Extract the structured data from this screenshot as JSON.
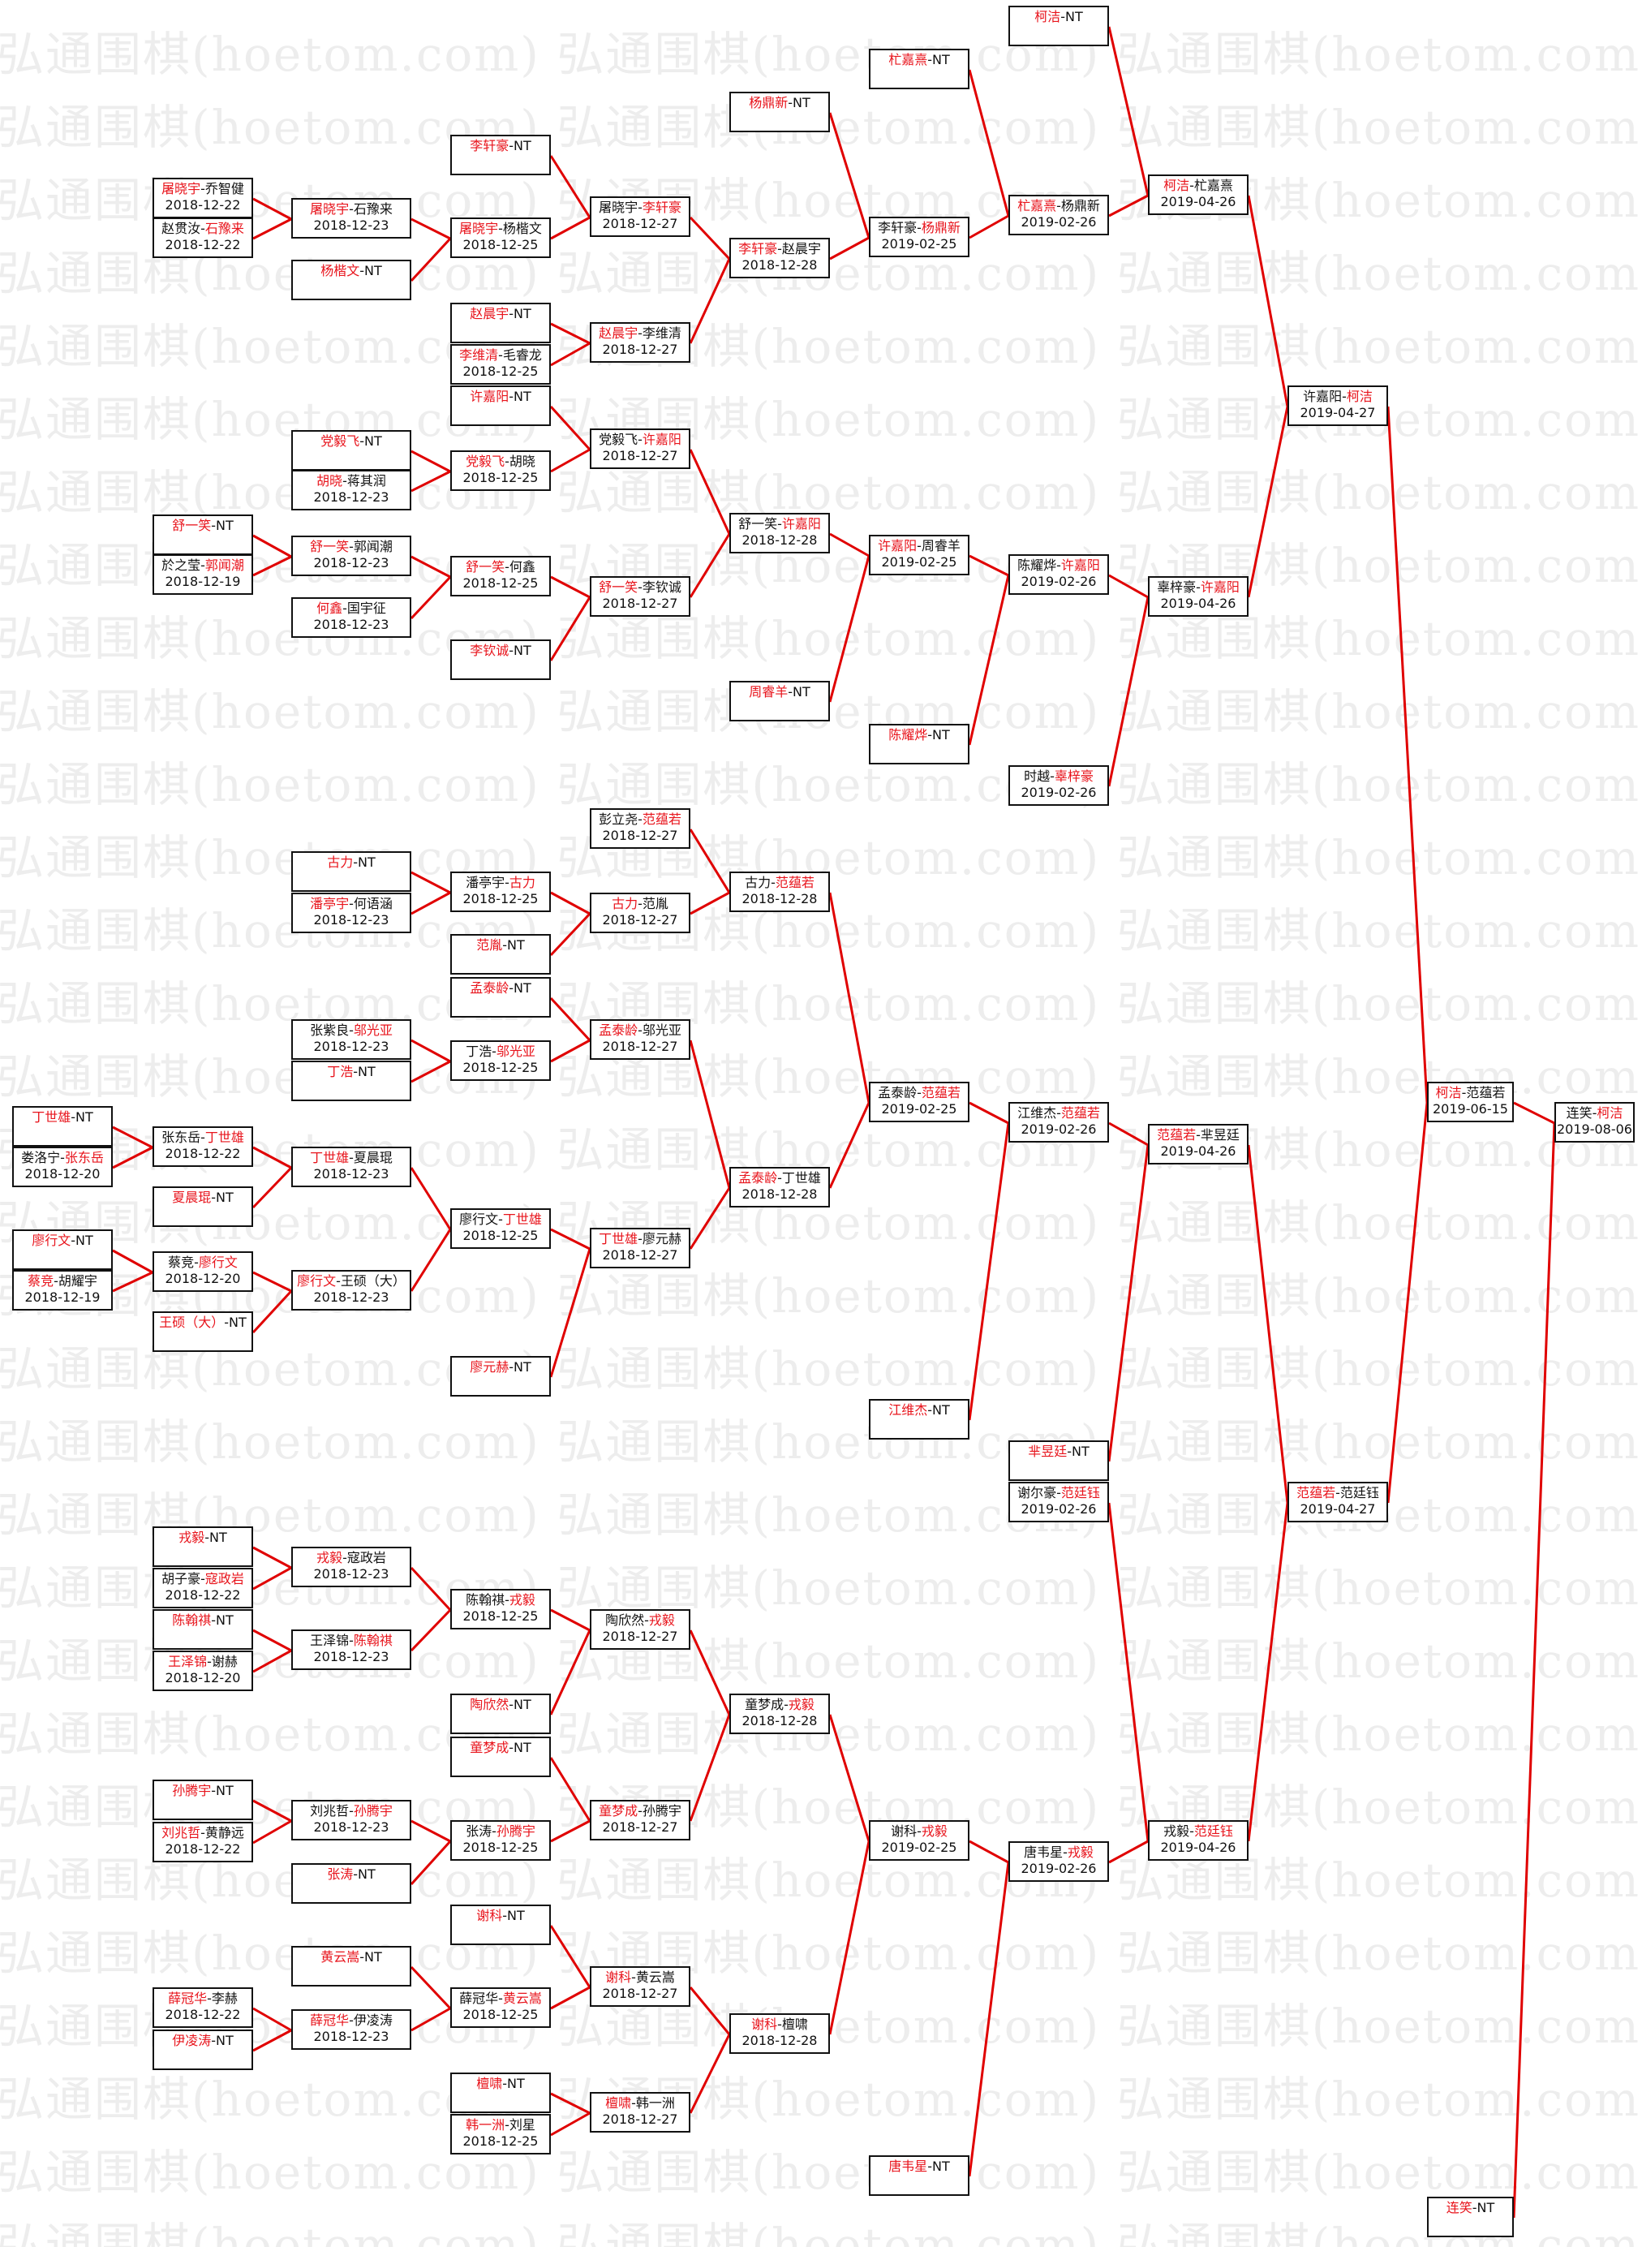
{
  "watermark": "弘通围棋(hoetom.com)",
  "separator": "-",
  "colors": {
    "line": "#e00000",
    "winner": "#e8141c",
    "text": "#111111",
    "border": "#111111"
  },
  "matches": [
    {
      "p1": "丁世雄",
      "p2": "NT",
      "winner": 1
    },
    {
      "p1": "娄洛宁",
      "p2": "张东岳",
      "date": "2018-12-20",
      "winner": 2
    },
    {
      "p1": "廖行文",
      "p2": "NT",
      "winner": 1
    },
    {
      "p1": "蔡竞",
      "p2": "胡耀宇",
      "date": "2018-12-19",
      "winner": 1
    },
    {
      "p1": "屠晓宇",
      "p2": "乔智健",
      "date": "2018-12-22",
      "winner": 1
    },
    {
      "p1": "赵贯汝",
      "p2": "石豫来",
      "date": "2018-12-22",
      "winner": 2
    },
    {
      "p1": "舒一笑",
      "p2": "NT",
      "winner": 1
    },
    {
      "p1": "於之莹",
      "p2": "郭闻潮",
      "date": "2018-12-19",
      "winner": 2
    },
    {
      "p1": "张东岳",
      "p2": "丁世雄",
      "date": "2018-12-22",
      "winner": 2
    },
    {
      "p1": "夏晨琨",
      "p2": "NT",
      "winner": 1
    },
    {
      "p1": "蔡竞",
      "p2": "廖行文",
      "date": "2018-12-20",
      "winner": 2
    },
    {
      "p1": "王硕（大）",
      "p2": "NT",
      "winner": 1
    },
    {
      "p1": "戎毅",
      "p2": "NT",
      "winner": 1
    },
    {
      "p1": "胡子豪",
      "p2": "寇政岩",
      "date": "2018-12-22",
      "winner": 2
    },
    {
      "p1": "陈翰祺",
      "p2": "NT",
      "winner": 1
    },
    {
      "p1": "王泽锦",
      "p2": "谢赫",
      "date": "2018-12-20",
      "winner": 1
    },
    {
      "p1": "孙腾宇",
      "p2": "NT",
      "winner": 1
    },
    {
      "p1": "刘兆哲",
      "p2": "黄静远",
      "date": "2018-12-22",
      "winner": 1
    },
    {
      "p1": "薛冠华",
      "p2": "李赫",
      "date": "2018-12-22",
      "winner": 1
    },
    {
      "p1": "伊凌涛",
      "p2": "NT",
      "winner": 1
    },
    {
      "p1": "屠晓宇",
      "p2": "石豫来",
      "date": "2018-12-23",
      "winner": 1
    },
    {
      "p1": "杨楷文",
      "p2": "NT",
      "winner": 1
    },
    {
      "p1": "党毅飞",
      "p2": "NT",
      "winner": 1
    },
    {
      "p1": "胡晓",
      "p2": "蒋其润",
      "date": "2018-12-23",
      "winner": 1
    },
    {
      "p1": "舒一笑",
      "p2": "郭闻潮",
      "date": "2018-12-23",
      "winner": 1
    },
    {
      "p1": "何鑫",
      "p2": "国宇征",
      "date": "2018-12-23",
      "winner": 1
    },
    {
      "p1": "古力",
      "p2": "NT",
      "winner": 1
    },
    {
      "p1": "潘亭宇",
      "p2": "何语涵",
      "date": "2018-12-23",
      "winner": 1
    },
    {
      "p1": "张紫良",
      "p2": "邬光亚",
      "date": "2018-12-23",
      "winner": 2
    },
    {
      "p1": "丁浩",
      "p2": "NT",
      "winner": 1
    },
    {
      "p1": "丁世雄",
      "p2": "夏晨琨",
      "date": "2018-12-23",
      "winner": 1
    },
    {
      "p1": "廖行文",
      "p2": "王硕（大）",
      "date": "2018-12-23",
      "winner": 1
    },
    {
      "p1": "戎毅",
      "p2": "寇政岩",
      "date": "2018-12-23",
      "winner": 1
    },
    {
      "p1": "王泽锦",
      "p2": "陈翰祺",
      "date": "2018-12-23",
      "winner": 2
    },
    {
      "p1": "刘兆哲",
      "p2": "孙腾宇",
      "date": "2018-12-23",
      "winner": 2
    },
    {
      "p1": "张涛",
      "p2": "NT",
      "winner": 1
    },
    {
      "p1": "黄云嵩",
      "p2": "NT",
      "winner": 1
    },
    {
      "p1": "薛冠华",
      "p2": "伊凌涛",
      "date": "2018-12-23",
      "winner": 1
    },
    {
      "p1": "李轩豪",
      "p2": "NT",
      "winner": 1
    },
    {
      "p1": "屠晓宇",
      "p2": "杨楷文",
      "date": "2018-12-25",
      "winner": 1
    },
    {
      "p1": "赵晨宇",
      "p2": "NT",
      "winner": 1
    },
    {
      "p1": "李维清",
      "p2": "毛睿龙",
      "date": "2018-12-25",
      "winner": 1
    },
    {
      "p1": "许嘉阳",
      "p2": "NT",
      "winner": 1
    },
    {
      "p1": "党毅飞",
      "p2": "胡晓",
      "date": "2018-12-25",
      "winner": 1
    },
    {
      "p1": "舒一笑",
      "p2": "何鑫",
      "date": "2018-12-25",
      "winner": 1
    },
    {
      "p1": "李钦诚",
      "p2": "NT",
      "winner": 1
    },
    {
      "p1": "潘亭宇",
      "p2": "古力",
      "date": "2018-12-25",
      "winner": 2
    },
    {
      "p1": "范胤",
      "p2": "NT",
      "winner": 1
    },
    {
      "p1": "孟泰龄",
      "p2": "NT",
      "winner": 1
    },
    {
      "p1": "丁浩",
      "p2": "邬光亚",
      "date": "2018-12-25",
      "winner": 2
    },
    {
      "p1": "廖行文",
      "p2": "丁世雄",
      "date": "2018-12-25",
      "winner": 2
    },
    {
      "p1": "廖元赫",
      "p2": "NT",
      "winner": 1
    },
    {
      "p1": "陈翰祺",
      "p2": "戎毅",
      "date": "2018-12-25",
      "winner": 2
    },
    {
      "p1": "陶欣然",
      "p2": "NT",
      "winner": 1
    },
    {
      "p1": "童梦成",
      "p2": "NT",
      "winner": 1
    },
    {
      "p1": "张涛",
      "p2": "孙腾宇",
      "date": "2018-12-25",
      "winner": 2
    },
    {
      "p1": "谢科",
      "p2": "NT",
      "winner": 1
    },
    {
      "p1": "薛冠华",
      "p2": "黄云嵩",
      "date": "2018-12-25",
      "winner": 2
    },
    {
      "p1": "檀啸",
      "p2": "NT",
      "winner": 1
    },
    {
      "p1": "韩一洲",
      "p2": "刘星",
      "date": "2018-12-25",
      "winner": 1
    },
    {
      "p1": "屠晓宇",
      "p2": "李轩豪",
      "date": "2018-12-27",
      "winner": 2
    },
    {
      "p1": "赵晨宇",
      "p2": "李维清",
      "date": "2018-12-27",
      "winner": 1
    },
    {
      "p1": "党毅飞",
      "p2": "许嘉阳",
      "date": "2018-12-27",
      "winner": 2
    },
    {
      "p1": "舒一笑",
      "p2": "李钦诚",
      "date": "2018-12-27",
      "winner": 1
    },
    {
      "p1": "彭立尧",
      "p2": "范蕴若",
      "date": "2018-12-27",
      "winner": 2
    },
    {
      "p1": "古力",
      "p2": "范胤",
      "date": "2018-12-27",
      "winner": 1
    },
    {
      "p1": "孟泰龄",
      "p2": "邬光亚",
      "date": "2018-12-27",
      "winner": 1
    },
    {
      "p1": "丁世雄",
      "p2": "廖元赫",
      "date": "2018-12-27",
      "winner": 1
    },
    {
      "p1": "陶欣然",
      "p2": "戎毅",
      "date": "2018-12-27",
      "winner": 2
    },
    {
      "p1": "童梦成",
      "p2": "孙腾宇",
      "date": "2018-12-27",
      "winner": 1
    },
    {
      "p1": "谢科",
      "p2": "黄云嵩",
      "date": "2018-12-27",
      "winner": 1
    },
    {
      "p1": "檀啸",
      "p2": "韩一洲",
      "date": "2018-12-27",
      "winner": 1
    },
    {
      "p1": "杨鼎新",
      "p2": "NT",
      "winner": 1
    },
    {
      "p1": "李轩豪",
      "p2": "赵晨宇",
      "date": "2018-12-28",
      "winner": 1
    },
    {
      "p1": "舒一笑",
      "p2": "许嘉阳",
      "date": "2018-12-28",
      "winner": 2
    },
    {
      "p1": "周睿羊",
      "p2": "NT",
      "winner": 1
    },
    {
      "p1": "古力",
      "p2": "范蕴若",
      "date": "2018-12-28",
      "winner": 2
    },
    {
      "p1": "孟泰龄",
      "p2": "丁世雄",
      "date": "2018-12-28",
      "winner": 1
    },
    {
      "p1": "童梦成",
      "p2": "戎毅",
      "date": "2018-12-28",
      "winner": 2
    },
    {
      "p1": "谢科",
      "p2": "檀啸",
      "date": "2018-12-28",
      "winner": 1
    },
    {
      "p1": "杧嘉熹",
      "p2": "NT",
      "winner": 1
    },
    {
      "p1": "李轩豪",
      "p2": "杨鼎新",
      "date": "2019-02-25",
      "winner": 2
    },
    {
      "p1": "许嘉阳",
      "p2": "周睿羊",
      "date": "2019-02-25",
      "winner": 1
    },
    {
      "p1": "陈耀烨",
      "p2": "NT",
      "winner": 1
    },
    {
      "p1": "孟泰龄",
      "p2": "范蕴若",
      "date": "2019-02-25",
      "winner": 2
    },
    {
      "p1": "江维杰",
      "p2": "NT",
      "winner": 1
    },
    {
      "p1": "谢科",
      "p2": "戎毅",
      "date": "2019-02-25",
      "winner": 2
    },
    {
      "p1": "唐韦星",
      "p2": "NT",
      "winner": 1
    },
    {
      "p1": "柯洁",
      "p2": "NT",
      "winner": 1
    },
    {
      "p1": "杧嘉熹",
      "p2": "杨鼎新",
      "date": "2019-02-26",
      "winner": 1
    },
    {
      "p1": "陈耀烨",
      "p2": "许嘉阳",
      "date": "2019-02-26",
      "winner": 2
    },
    {
      "p1": "时越",
      "p2": "辜梓豪",
      "date": "2019-02-26",
      "winner": 2
    },
    {
      "p1": "江维杰",
      "p2": "范蕴若",
      "date": "2019-02-26",
      "winner": 2
    },
    {
      "p1": "芈昱廷",
      "p2": "NT",
      "winner": 1
    },
    {
      "p1": "谢尔豪",
      "p2": "范廷钰",
      "date": "2019-02-26",
      "winner": 2
    },
    {
      "p1": "唐韦星",
      "p2": "戎毅",
      "date": "2019-02-26",
      "winner": 2
    },
    {
      "p1": "柯洁",
      "p2": "杧嘉熹",
      "date": "2019-04-26",
      "winner": 1
    },
    {
      "p1": "辜梓豪",
      "p2": "许嘉阳",
      "date": "2019-04-26",
      "winner": 2
    },
    {
      "p1": "范蕴若",
      "p2": "芈昱廷",
      "date": "2019-04-26",
      "winner": 1
    },
    {
      "p1": "戎毅",
      "p2": "范廷钰",
      "date": "2019-04-26",
      "winner": 2
    },
    {
      "p1": "许嘉阳",
      "p2": "柯洁",
      "date": "2019-04-27",
      "winner": 2
    },
    {
      "p1": "范蕴若",
      "p2": "范廷钰",
      "date": "2019-04-27",
      "winner": 1
    },
    {
      "p1": "柯洁",
      "p2": "范蕴若",
      "date": "2019-06-15",
      "winner": 1
    },
    {
      "p1": "连笑",
      "p2": "NT",
      "winner": 1
    },
    {
      "p1": "连笑",
      "p2": "柯洁",
      "date": "2019-08-06",
      "winner": 2
    }
  ]
}
